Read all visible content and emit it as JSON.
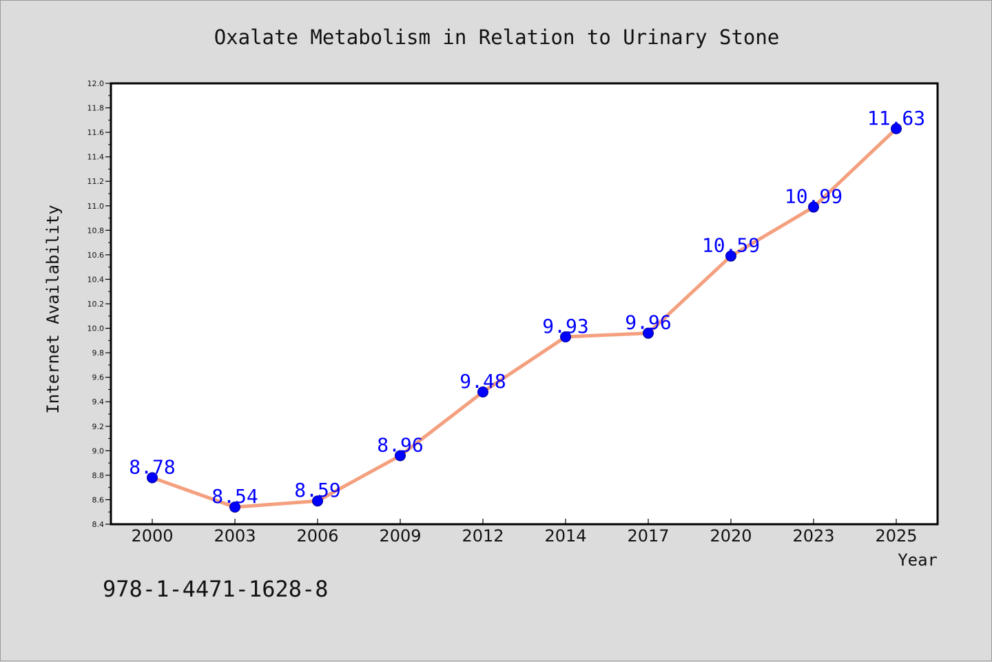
{
  "chart_data": {
    "type": "line",
    "title": "Oxalate Metabolism in Relation to Urinary Stone",
    "xlabel": "Year",
    "ylabel": "Internet Availability",
    "categories": [
      "2000",
      "2003",
      "2006",
      "2009",
      "2012",
      "2014",
      "2017",
      "2020",
      "2023",
      "2025"
    ],
    "series": [
      {
        "values": [
          8.78,
          8.54,
          8.59,
          8.96,
          9.48,
          9.93,
          9.96,
          10.59,
          10.99,
          11.63
        ]
      }
    ],
    "data_labels": [
      "8.78",
      "8.54",
      "8.59",
      "8.96",
      "9.48",
      "9.93",
      "9.96",
      "10.59",
      "10.99",
      "11.63"
    ],
    "ylim": [
      8.4,
      12.0
    ],
    "yticks": [
      "8.4",
      "8.6",
      "8.8",
      "9.0",
      "9.2",
      "9.4",
      "9.6",
      "9.8",
      "10.0",
      "10.2",
      "10.4",
      "10.6",
      "10.8",
      "11.0",
      "11.2",
      "11.4",
      "11.6",
      "11.8",
      "12.0"
    ],
    "grid": false,
    "line_color": "#f4a07f",
    "marker_color": "#0000ff",
    "label_color": "#0000ff"
  },
  "footer_text": "978-1-4471-1628-8"
}
